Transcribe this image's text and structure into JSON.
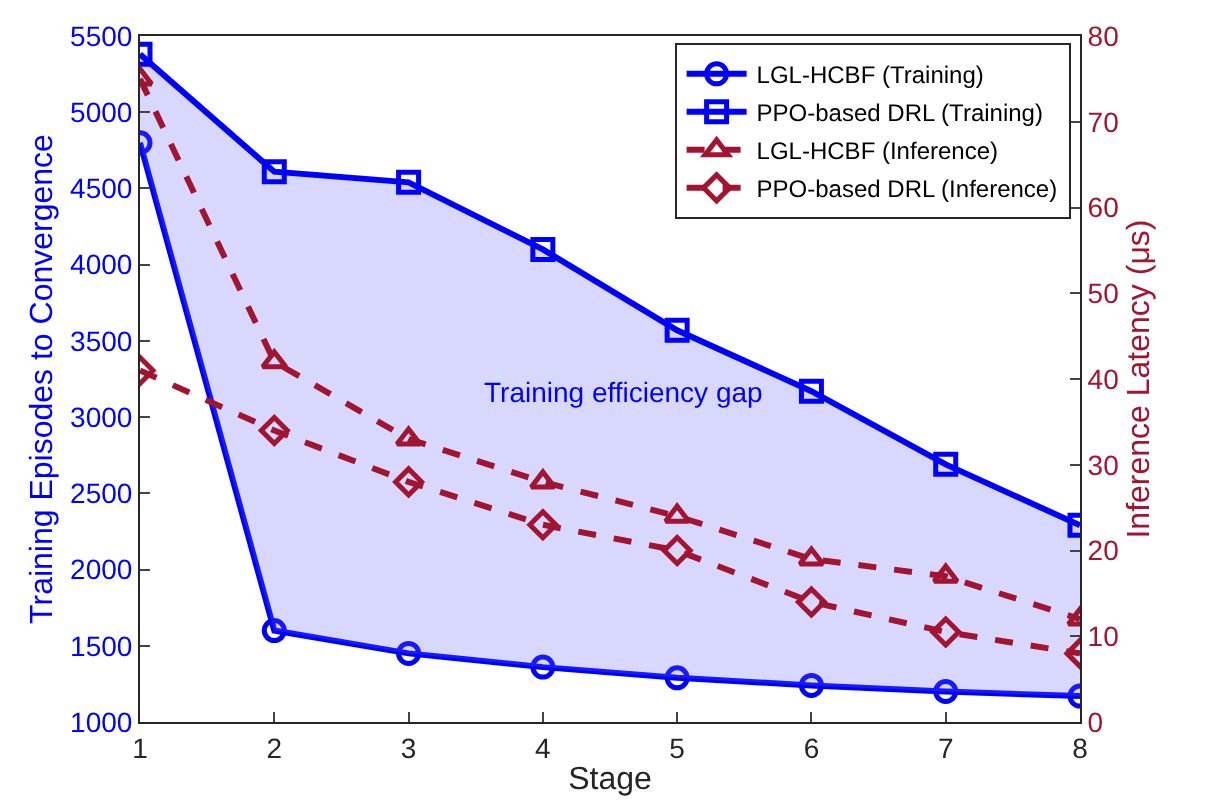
{
  "chart_data": {
    "type": "line",
    "xlabel": "Stage",
    "ylabel": "Training Episodes to Convergence",
    "y2label": "Inference Latency (μs)",
    "x": [
      1,
      2,
      3,
      4,
      5,
      6,
      7,
      8
    ],
    "series": [
      {
        "name": "LGL-HCBF (Training)",
        "color": "#0000ff",
        "marker": "circle",
        "line_style": "solid",
        "values": [
          4800,
          1600,
          1450,
          1360,
          1290,
          1240,
          1200,
          1170
        ]
      },
      {
        "name": "PPO-based DRL (Training)",
        "color": "#0000ff",
        "marker": "square",
        "line_style": "solid",
        "values": [
          5380,
          4610,
          4540,
          4100,
          3570,
          3170,
          2690,
          2290
        ],
        "lower": [
          4800,
          1600,
          1450,
          1360,
          1290,
          1240,
          1200,
          1170
        ],
        "upper": [
          5380,
          4610,
          4540,
          4100,
          3570,
          3170,
          2690,
          2290
        ]
      },
      {
        "name": "LGL-HCBF (Inference)",
        "color": "#a2142f",
        "marker": "triangle",
        "line_style": "dashed",
        "axis": "y2",
        "values": [
          75,
          42,
          33,
          28,
          24,
          19,
          17,
          12
        ]
      },
      {
        "name": "PPO-based DRL (Inference)",
        "color": "#a2142f",
        "marker": "diamond",
        "line_style": "dashed",
        "axis": "y2",
        "values": [
          41,
          34,
          28,
          23,
          20,
          14,
          10.5,
          8
        ]
      }
    ],
    "xlim": [
      1,
      8
    ],
    "xticks": [
      1,
      2,
      3,
      4,
      5,
      6,
      7,
      8
    ],
    "ylim": [
      1000,
      5500
    ],
    "yticks": [
      1000,
      1500,
      2000,
      2500,
      3000,
      3500,
      4000,
      4500,
      5000,
      5500
    ],
    "y2lim": [
      0,
      80
    ],
    "y2ticks": [
      0,
      10,
      20,
      30,
      40,
      50,
      60,
      70,
      80
    ],
    "annotations": [
      "Training efficiency gap"
    ],
    "legend": "top right"
  }
}
